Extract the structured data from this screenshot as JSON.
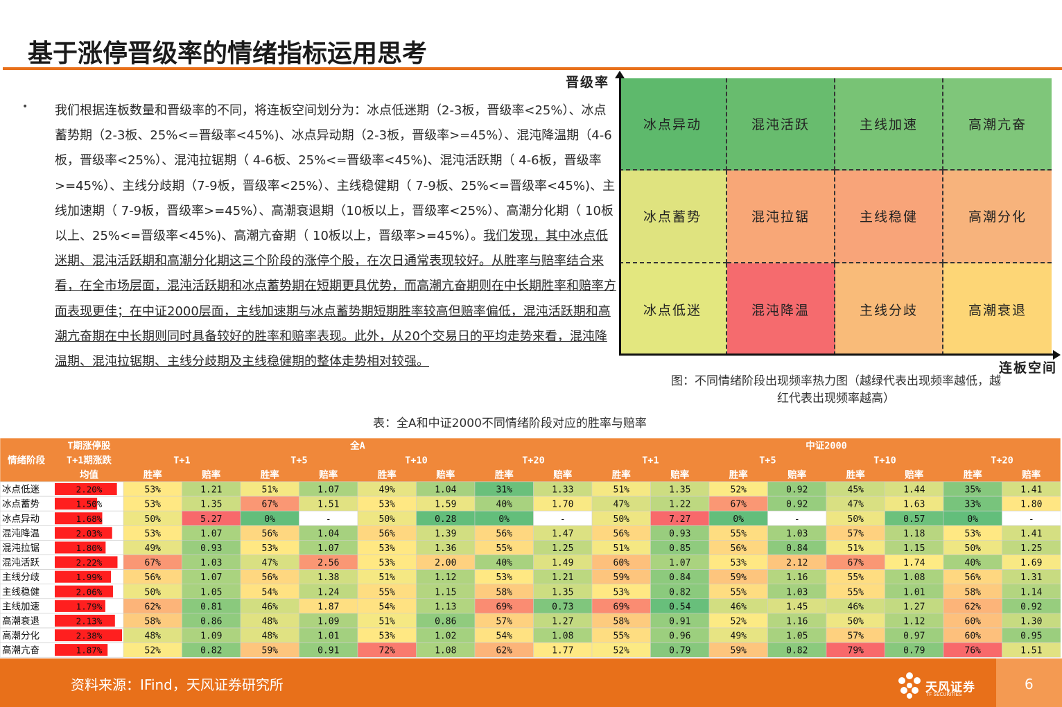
{
  "slide": {
    "title": "基于涨停晋级率的情绪指标运用思考",
    "bullet": "•",
    "paragraph_plain": "我们根据连板数量和晋级率的不同，将连板空间划分为：冰点低迷期（2-3板，晋级率<25%）、冰点蓄势期（2-3板、25%<=晋级率<45%)、冰点异动期（2-3板，晋级率>=45%）、混沌降温期（4-6板，晋级率<25%）、混沌拉锯期（ 4-6板、25%<=晋级率<45%)、混沌活跃期（ 4-6板，晋级率>=45%）、主线分歧期（7-9板，晋级率<25%）、主线稳健期（ 7-9板、25%<=晋级率<45%)、主线加速期（ 7-9板，晋级率>=45%）、高潮衰退期（10板以上，晋级率<25%）、高潮分化期（ 10板以上、25%<=晋级率<45%)、高潮亢奋期（ 10板以上，晋级率>=45%）。",
    "paragraph_underlined": "我们发现，其中冰点低迷期、混沌活跃期和高潮分化期这三个阶段的涨停个股，在次日通常表现较好。从胜率与赔率结合来看，在全市场层面，混沌活跃期和冰点蓄势期在短期更具优势，而高潮亢奋期则在中长期胜率和赔率方面表现更佳；在中证2000层面，主线加速期与冰点蓄势期短期胜率较高但赔率偏低，混沌活跃期和高潮亢奋期在中长期则同时具备较好的胜率和赔率表现。此外，从20个交易日的平均走势来看，混沌降温期、混沌拉锯期、主线分歧期及主线稳健期的整体走势相对较强。",
    "figure_caption": "图：不同情绪阶段出现频率热力图（越绿代表出现频率越低，越红代表出现频率越高）",
    "table_caption": "表：全A和中证2000不同情绪阶段对应的胜率与赔率",
    "source": "资料来源：IFind，天风证券研究所",
    "logo_text": "天风证券",
    "logo_sub": "TF SECURITIES",
    "page_number": "6",
    "colors": {
      "accent": "#e8701a",
      "accent_light": "#f49a52"
    }
  },
  "chart_data": [
    {
      "type": "heatmap",
      "xlabel": "连板空间",
      "ylabel": "晋级率",
      "rows": [
        [
          "冰点异动",
          "混沌活跃",
          "主线加速",
          "高潮亢奋"
        ],
        [
          "冰点蓄势",
          "混沌拉锯",
          "主线稳健",
          "高潮分化"
        ],
        [
          "冰点低迷",
          "混沌降温",
          "主线分歧",
          "高潮衰退"
        ]
      ],
      "cell_colors": [
        [
          "#5eb96c",
          "#68bc6e",
          "#78c375",
          "#7fc67a"
        ],
        [
          "#dfe37f",
          "#f8a777",
          "#f8a479",
          "#f7b37c"
        ],
        [
          "#e3e77f",
          "#f56b6e",
          "#f9bb79",
          "#fdd676"
        ]
      ]
    },
    {
      "type": "table",
      "header": {
        "stage": "情绪阶段",
        "bar_col": [
          "T期涨停股",
          "T+1期涨跌",
          "均值"
        ],
        "groups": [
          "全A",
          "中证2000"
        ],
        "periods": [
          "T+1",
          "T+5",
          "T+10",
          "T+20"
        ],
        "metrics": [
          "胜率",
          "赔率"
        ]
      },
      "rows": [
        {
          "stage": "冰点低迷",
          "mean": "2.20%",
          "quan_a": [
            "53%",
            "1.21",
            "51%",
            "1.07",
            "49%",
            "1.04",
            "31%",
            "1.33"
          ],
          "zz2000": [
            "51%",
            "1.35",
            "52%",
            "0.92",
            "45%",
            "1.44",
            "35%",
            "1.41"
          ]
        },
        {
          "stage": "冰点蓄势",
          "mean": "1.50%",
          "quan_a": [
            "53%",
            "1.35",
            "67%",
            "1.51",
            "53%",
            "1.59",
            "40%",
            "1.70"
          ],
          "zz2000": [
            "47%",
            "1.22",
            "67%",
            "0.92",
            "47%",
            "1.63",
            "33%",
            "1.80"
          ]
        },
        {
          "stage": "冰点异动",
          "mean": "1.68%",
          "quan_a": [
            "50%",
            "5.27",
            "0%",
            "-",
            "50%",
            "0.28",
            "0%",
            "-"
          ],
          "zz2000": [
            "50%",
            "7.27",
            "0%",
            "-",
            "50%",
            "0.57",
            "0%",
            "-"
          ]
        },
        {
          "stage": "混沌降温",
          "mean": "2.03%",
          "quan_a": [
            "53%",
            "1.07",
            "56%",
            "1.04",
            "56%",
            "1.39",
            "56%",
            "1.47"
          ],
          "zz2000": [
            "56%",
            "0.93",
            "55%",
            "1.03",
            "57%",
            "1.18",
            "53%",
            "1.41"
          ]
        },
        {
          "stage": "混沌拉锯",
          "mean": "1.80%",
          "quan_a": [
            "49%",
            "0.93",
            "53%",
            "1.07",
            "53%",
            "1.36",
            "55%",
            "1.25"
          ],
          "zz2000": [
            "51%",
            "0.85",
            "56%",
            "0.84",
            "51%",
            "1.15",
            "50%",
            "1.25"
          ]
        },
        {
          "stage": "混沌活跃",
          "mean": "2.22%",
          "quan_a": [
            "67%",
            "1.03",
            "47%",
            "2.56",
            "53%",
            "2.00",
            "40%",
            "1.49"
          ],
          "zz2000": [
            "60%",
            "1.07",
            "53%",
            "2.12",
            "67%",
            "1.74",
            "40%",
            "1.69"
          ]
        },
        {
          "stage": "主线分歧",
          "mean": "1.99%",
          "quan_a": [
            "56%",
            "1.07",
            "56%",
            "1.38",
            "51%",
            "1.12",
            "53%",
            "1.21"
          ],
          "zz2000": [
            "59%",
            "0.84",
            "59%",
            "1.16",
            "55%",
            "1.08",
            "56%",
            "1.31"
          ]
        },
        {
          "stage": "主线稳健",
          "mean": "2.06%",
          "quan_a": [
            "50%",
            "1.05",
            "54%",
            "1.24",
            "55%",
            "1.15",
            "58%",
            "1.35"
          ],
          "zz2000": [
            "53%",
            "0.82",
            "55%",
            "1.03",
            "55%",
            "1.01",
            "58%",
            "1.14"
          ]
        },
        {
          "stage": "主线加速",
          "mean": "1.79%",
          "quan_a": [
            "62%",
            "0.81",
            "46%",
            "1.87",
            "54%",
            "1.13",
            "69%",
            "0.73"
          ],
          "zz2000": [
            "69%",
            "0.54",
            "46%",
            "1.45",
            "46%",
            "1.27",
            "62%",
            "0.92"
          ]
        },
        {
          "stage": "高潮衰退",
          "mean": "2.13%",
          "quan_a": [
            "58%",
            "0.86",
            "48%",
            "1.09",
            "51%",
            "0.86",
            "57%",
            "1.27"
          ],
          "zz2000": [
            "58%",
            "0.91",
            "52%",
            "1.16",
            "50%",
            "1.12",
            "60%",
            "1.30"
          ]
        },
        {
          "stage": "高潮分化",
          "mean": "2.38%",
          "quan_a": [
            "48%",
            "1.09",
            "48%",
            "1.01",
            "53%",
            "1.02",
            "54%",
            "1.08"
          ],
          "zz2000": [
            "55%",
            "0.96",
            "49%",
            "1.05",
            "57%",
            "0.97",
            "60%",
            "0.95"
          ]
        },
        {
          "stage": "高潮亢奋",
          "mean": "1.87%",
          "quan_a": [
            "52%",
            "0.82",
            "59%",
            "0.91",
            "72%",
            "1.08",
            "62%",
            "1.77"
          ],
          "zz2000": [
            "52%",
            "0.79",
            "59%",
            "0.82",
            "79%",
            "0.79",
            "76%",
            "1.51"
          ]
        }
      ],
      "mean_bar_max": 2.38,
      "colors": {
        "header_bg": "#f0883a",
        "bar": "#ff1f1f"
      }
    }
  ]
}
